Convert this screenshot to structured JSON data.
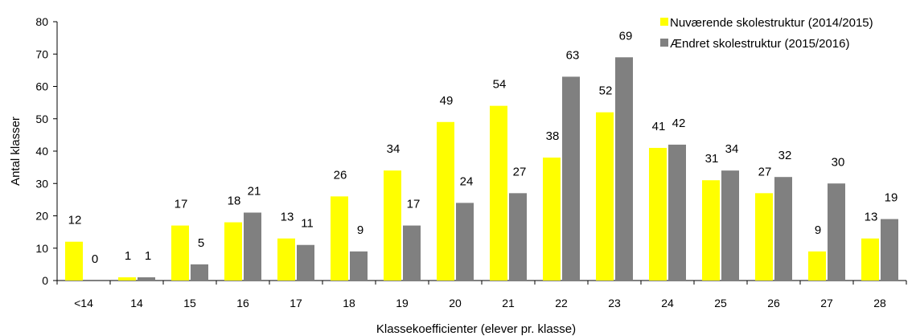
{
  "chart_data": {
    "type": "bar",
    "title": "",
    "xlabel": "Klassekoefficienter (elever pr. klasse)",
    "ylabel": "Antal klasser",
    "ylim": [
      0,
      80
    ],
    "yticks": [
      "0",
      "10",
      "20",
      "30",
      "40",
      "50",
      "60",
      "70",
      "80"
    ],
    "grid": false,
    "legend_position": "top-right",
    "categories": [
      "<14",
      "14",
      "15",
      "16",
      "17",
      "18",
      "19",
      "20",
      "21",
      "22",
      "23",
      "24",
      "25",
      "26",
      "27",
      "28"
    ],
    "series": [
      {
        "name": "Nuværende skolestruktur (2014/2015)",
        "color": "#ffff00",
        "values": [
          12,
          1,
          17,
          18,
          13,
          26,
          34,
          49,
          54,
          38,
          52,
          41,
          31,
          27,
          9,
          13
        ]
      },
      {
        "name": "Ændret skolestruktur (2015/2016)",
        "color": "#808080",
        "values": [
          0,
          1,
          5,
          21,
          11,
          9,
          17,
          24,
          27,
          63,
          69,
          42,
          34,
          32,
          30,
          19
        ]
      }
    ]
  }
}
